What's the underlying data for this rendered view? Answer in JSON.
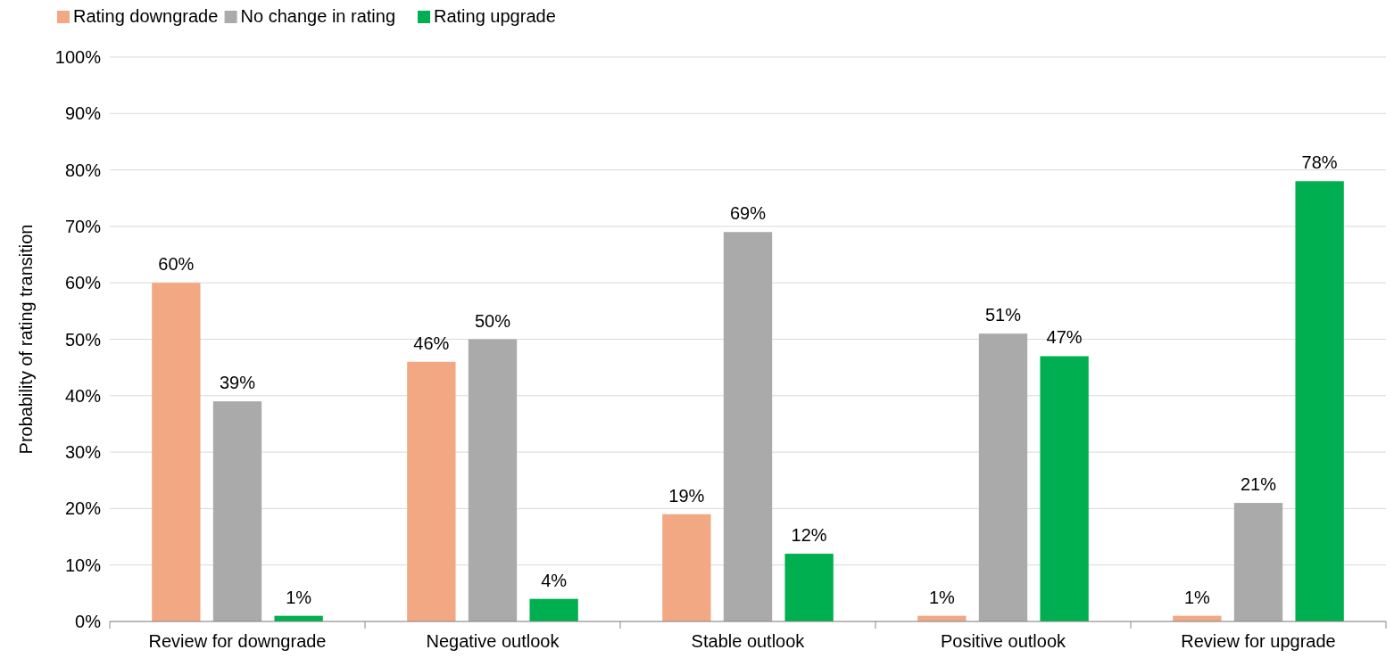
{
  "chart_data": {
    "type": "bar",
    "ylabel": "Probability of rating transition",
    "categories": [
      "Review for downgrade",
      "Negative outlook",
      "Stable outlook",
      "Positive outlook",
      "Review for upgrade"
    ],
    "series": [
      {
        "name": "Rating downgrade",
        "color": "#f2a883",
        "values": [
          60,
          46,
          19,
          1,
          1
        ],
        "value_labels": [
          "60%",
          "46%",
          "19%",
          "1%",
          "1%"
        ]
      },
      {
        "name": "No change in rating",
        "color": "#aaaaab",
        "values": [
          39,
          50,
          69,
          51,
          21
        ],
        "value_labels": [
          "39%",
          "50%",
          "69%",
          "51%",
          "21%"
        ]
      },
      {
        "name": "Rating upgrade",
        "color": "#00b050",
        "values": [
          1,
          4,
          12,
          47,
          78
        ],
        "value_labels": [
          "1%",
          "4%",
          "12%",
          "47%",
          "78%"
        ]
      }
    ],
    "ylim": [
      0,
      100
    ],
    "yticks": [
      {
        "value": 0,
        "label": "0%"
      },
      {
        "value": 10,
        "label": "10%"
      },
      {
        "value": 20,
        "label": "20%"
      },
      {
        "value": 30,
        "label": "30%"
      },
      {
        "value": 40,
        "label": "40%"
      },
      {
        "value": 50,
        "label": "50%"
      },
      {
        "value": 60,
        "label": "60%"
      },
      {
        "value": 70,
        "label": "70%"
      },
      {
        "value": 80,
        "label": "80%"
      },
      {
        "value": 90,
        "label": "90%"
      },
      {
        "value": 100,
        "label": "100%"
      }
    ],
    "grid": "y",
    "legend": "top left"
  }
}
